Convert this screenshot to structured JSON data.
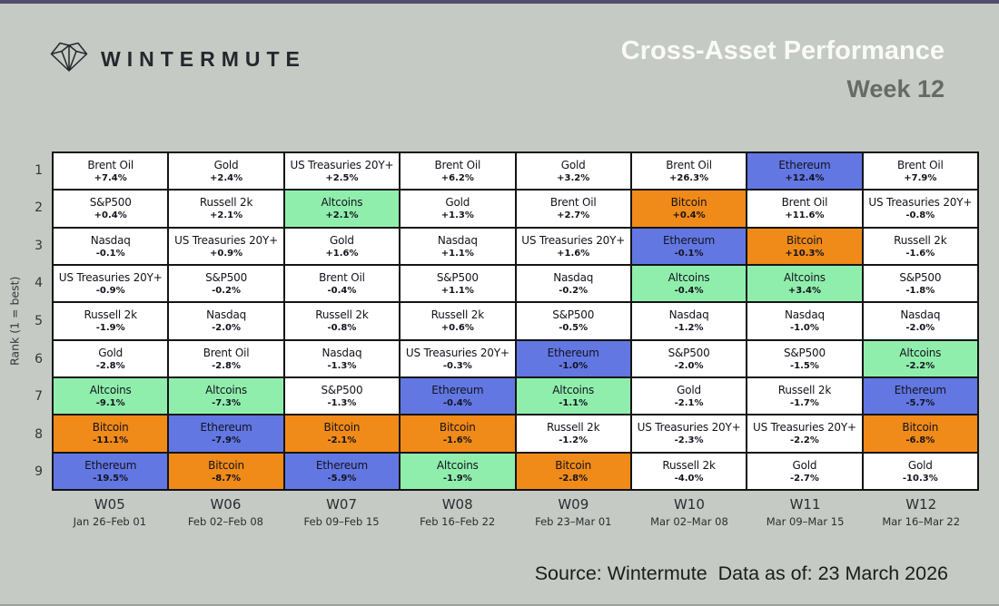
{
  "header": {
    "brand": "WINTERMUTE",
    "title": "Cross-Asset Performance",
    "subtitle": "Week 12"
  },
  "footer": {
    "text": "Source: Wintermute  Data as of: 23 March 2026"
  },
  "chart_data": {
    "type": "table",
    "title": "Cross-Asset Performance",
    "subtitle": "Week 12",
    "ylabel": "Rank (1 = best)",
    "ranks": [
      1,
      2,
      3,
      4,
      5,
      6,
      7,
      8,
      9
    ],
    "asset_colors": {
      "Bitcoin": "#f08a18",
      "Ethereum": "#6277e2",
      "Altcoins": "#90eead",
      "default": "#ffffff"
    },
    "cell_border_color": "#141414",
    "weeks": [
      {
        "label": "W05",
        "dates": "Jan 26–Feb 01",
        "cells": [
          {
            "asset": "Brent Oil",
            "change": "+7.4%"
          },
          {
            "asset": "S&P500",
            "change": "+0.4%"
          },
          {
            "asset": "Nasdaq",
            "change": "-0.1%"
          },
          {
            "asset": "US Treasuries 20Y+",
            "change": "-0.9%"
          },
          {
            "asset": "Russell 2k",
            "change": "-1.9%"
          },
          {
            "asset": "Gold",
            "change": "-2.8%"
          },
          {
            "asset": "Altcoins",
            "change": "-9.1%"
          },
          {
            "asset": "Bitcoin",
            "change": "-11.1%"
          },
          {
            "asset": "Ethereum",
            "change": "-19.5%"
          }
        ]
      },
      {
        "label": "W06",
        "dates": "Feb 02–Feb 08",
        "cells": [
          {
            "asset": "Gold",
            "change": "+2.4%"
          },
          {
            "asset": "Russell 2k",
            "change": "+2.1%"
          },
          {
            "asset": "US Treasuries 20Y+",
            "change": "+0.9%"
          },
          {
            "asset": "S&P500",
            "change": "-0.2%"
          },
          {
            "asset": "Nasdaq",
            "change": "-2.0%"
          },
          {
            "asset": "Brent Oil",
            "change": "-2.8%"
          },
          {
            "asset": "Altcoins",
            "change": "-7.3%"
          },
          {
            "asset": "Ethereum",
            "change": "-7.9%"
          },
          {
            "asset": "Bitcoin",
            "change": "-8.7%"
          }
        ]
      },
      {
        "label": "W07",
        "dates": "Feb 09–Feb 15",
        "cells": [
          {
            "asset": "US Treasuries 20Y+",
            "change": "+2.5%"
          },
          {
            "asset": "Altcoins",
            "change": "+2.1%"
          },
          {
            "asset": "Gold",
            "change": "+1.6%"
          },
          {
            "asset": "Brent Oil",
            "change": "-0.4%"
          },
          {
            "asset": "Russell 2k",
            "change": "-0.8%"
          },
          {
            "asset": "Nasdaq",
            "change": "-1.3%"
          },
          {
            "asset": "S&P500",
            "change": "-1.3%"
          },
          {
            "asset": "Bitcoin",
            "change": "-2.1%"
          },
          {
            "asset": "Ethereum",
            "change": "-5.9%"
          }
        ]
      },
      {
        "label": "W08",
        "dates": "Feb 16–Feb 22",
        "cells": [
          {
            "asset": "Brent Oil",
            "change": "+6.2%"
          },
          {
            "asset": "Gold",
            "change": "+1.3%"
          },
          {
            "asset": "Nasdaq",
            "change": "+1.1%"
          },
          {
            "asset": "S&P500",
            "change": "+1.1%"
          },
          {
            "asset": "Russell 2k",
            "change": "+0.6%"
          },
          {
            "asset": "US Treasuries 20Y+",
            "change": "-0.3%"
          },
          {
            "asset": "Ethereum",
            "change": "-0.4%"
          },
          {
            "asset": "Bitcoin",
            "change": "-1.6%"
          },
          {
            "asset": "Altcoins",
            "change": "-1.9%"
          }
        ]
      },
      {
        "label": "W09",
        "dates": "Feb 23–Mar 01",
        "cells": [
          {
            "asset": "Gold",
            "change": "+3.2%"
          },
          {
            "asset": "Brent Oil",
            "change": "+2.7%"
          },
          {
            "asset": "US Treasuries 20Y+",
            "change": "+1.6%"
          },
          {
            "asset": "Nasdaq",
            "change": "-0.2%"
          },
          {
            "asset": "S&P500",
            "change": "-0.5%"
          },
          {
            "asset": "Ethereum",
            "change": "-1.0%"
          },
          {
            "asset": "Altcoins",
            "change": "-1.1%"
          },
          {
            "asset": "Russell 2k",
            "change": "-1.2%"
          },
          {
            "asset": "Bitcoin",
            "change": "-2.8%"
          }
        ]
      },
      {
        "label": "W10",
        "dates": "Mar 02–Mar 08",
        "cells": [
          {
            "asset": "Brent Oil",
            "change": "+26.3%"
          },
          {
            "asset": "Bitcoin",
            "change": "+0.4%"
          },
          {
            "asset": "Ethereum",
            "change": "-0.1%"
          },
          {
            "asset": "Altcoins",
            "change": "-0.4%"
          },
          {
            "asset": "Nasdaq",
            "change": "-1.2%"
          },
          {
            "asset": "S&P500",
            "change": "-2.0%"
          },
          {
            "asset": "Gold",
            "change": "-2.1%"
          },
          {
            "asset": "US Treasuries 20Y+",
            "change": "-2.3%"
          },
          {
            "asset": "Russell 2k",
            "change": "-4.0%"
          }
        ]
      },
      {
        "label": "W11",
        "dates": "Mar 09–Mar 15",
        "cells": [
          {
            "asset": "Ethereum",
            "change": "+12.4%"
          },
          {
            "asset": "Brent Oil",
            "change": "+11.6%"
          },
          {
            "asset": "Bitcoin",
            "change": "+10.3%"
          },
          {
            "asset": "Altcoins",
            "change": "+3.4%"
          },
          {
            "asset": "Nasdaq",
            "change": "-1.0%"
          },
          {
            "asset": "S&P500",
            "change": "-1.5%"
          },
          {
            "asset": "Russell 2k",
            "change": "-1.7%"
          },
          {
            "asset": "US Treasuries 20Y+",
            "change": "-2.2%"
          },
          {
            "asset": "Gold",
            "change": "-2.7%"
          }
        ]
      },
      {
        "label": "W12",
        "dates": "Mar 16–Mar 22",
        "cells": [
          {
            "asset": "Brent Oil",
            "change": "+7.9%"
          },
          {
            "asset": "US Treasuries 20Y+",
            "change": "-0.8%"
          },
          {
            "asset": "Russell 2k",
            "change": "-1.6%"
          },
          {
            "asset": "S&P500",
            "change": "-1.8%"
          },
          {
            "asset": "Nasdaq",
            "change": "-2.0%"
          },
          {
            "asset": "Altcoins",
            "change": "-2.2%"
          },
          {
            "asset": "Ethereum",
            "change": "-5.7%"
          },
          {
            "asset": "Bitcoin",
            "change": "-6.8%"
          },
          {
            "asset": "Gold",
            "change": "-10.3%"
          }
        ]
      }
    ]
  }
}
